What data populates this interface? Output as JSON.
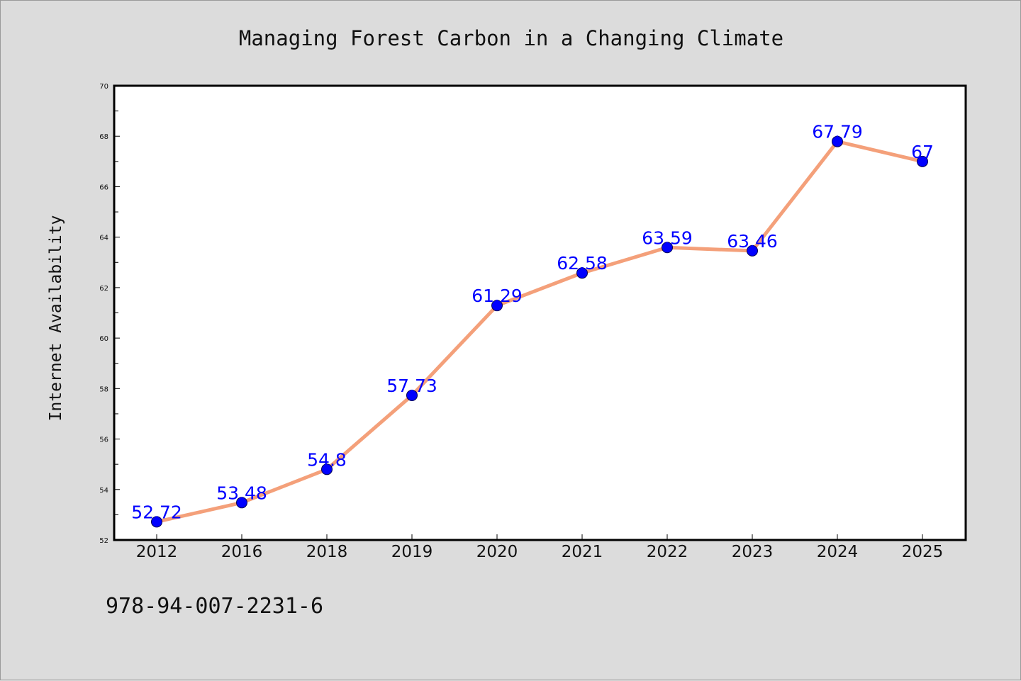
{
  "chart_data": {
    "type": "line",
    "title": "Managing Forest Carbon in a Changing Climate",
    "xlabel": "",
    "ylabel": "Internet Availability",
    "categories": [
      "2012",
      "2016",
      "2018",
      "2019",
      "2020",
      "2021",
      "2022",
      "2023",
      "2024",
      "2025"
    ],
    "series": [
      {
        "values": [
          52.72,
          53.48,
          54.8,
          57.73,
          61.29,
          62.58,
          63.59,
          63.46,
          67.79,
          67
        ],
        "labels": [
          "52.72",
          "53.48",
          "54.8",
          "57.73",
          "61.29",
          "62.58",
          "63.59",
          "63.46",
          "67.79",
          "67"
        ],
        "line_color": "#f4a07a",
        "marker_color": "#0000ff"
      }
    ],
    "ylim": [
      52,
      70
    ],
    "yticks": [
      "52",
      "54",
      "56",
      "58",
      "60",
      "62",
      "64",
      "66",
      "68",
      "70"
    ],
    "grid": false,
    "legend": "none"
  },
  "footer": {
    "isbn": "978-94-007-2231-6"
  }
}
